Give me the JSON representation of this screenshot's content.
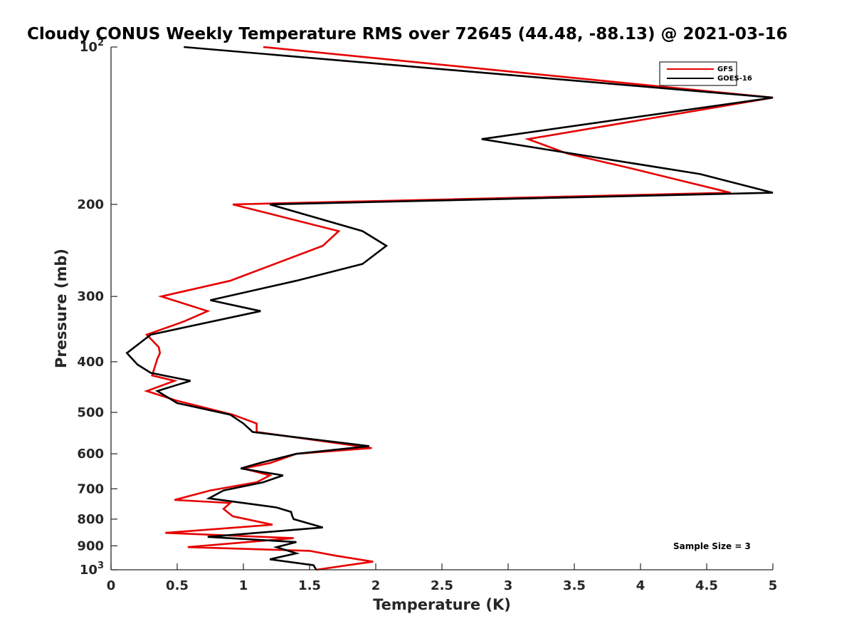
{
  "chart_data": {
    "type": "line",
    "title": "Cloudy CONUS Weekly Temperature RMS over 72645 (44.48, -88.13) @ 2021-03-16",
    "xlabel": "Temperature (K)",
    "ylabel": "Pressure (mb)",
    "xlim": [
      0,
      5
    ],
    "ylim": [
      100,
      1000
    ],
    "yscale": "log",
    "y_reversed": true,
    "x_ticks": [
      "0",
      "0.5",
      "1",
      "1.5",
      "2",
      "2.5",
      "3",
      "3.5",
      "4",
      "4.5",
      "5"
    ],
    "y_ticks": [
      {
        "value": 100,
        "base": "10",
        "exp": "2"
      },
      {
        "value": 200,
        "label": "200"
      },
      {
        "value": 300,
        "label": "300"
      },
      {
        "value": 400,
        "label": "400"
      },
      {
        "value": 500,
        "label": "500"
      },
      {
        "value": 600,
        "label": "600"
      },
      {
        "value": 700,
        "label": "700"
      },
      {
        "value": 800,
        "label": "800"
      },
      {
        "value": 900,
        "label": "900"
      },
      {
        "value": 1000,
        "base": "10",
        "exp": "3"
      }
    ],
    "grid": false,
    "legend_position": "top-right",
    "annotation": "Sample Size = 3",
    "series": [
      {
        "name": "GFS",
        "color": "#e60000",
        "points": [
          [
            1.15,
            100
          ],
          [
            5.0,
            125
          ],
          [
            3.15,
            150
          ],
          [
            3.45,
            160
          ],
          [
            3.9,
            170
          ],
          [
            4.68,
            190
          ],
          [
            0.92,
            200
          ],
          [
            1.72,
            225
          ],
          [
            1.6,
            240
          ],
          [
            0.9,
            280
          ],
          [
            0.38,
            300
          ],
          [
            0.73,
            320
          ],
          [
            0.55,
            335
          ],
          [
            0.27,
            355
          ],
          [
            0.36,
            375
          ],
          [
            0.37,
            385
          ],
          [
            0.35,
            395
          ],
          [
            0.31,
            425
          ],
          [
            0.48,
            435
          ],
          [
            0.27,
            455
          ],
          [
            0.5,
            475
          ],
          [
            0.92,
            505
          ],
          [
            1.1,
            525
          ],
          [
            1.1,
            545
          ],
          [
            1.97,
            585
          ],
          [
            1.4,
            600
          ],
          [
            1.2,
            625
          ],
          [
            1.0,
            640
          ],
          [
            1.2,
            660
          ],
          [
            1.1,
            680
          ],
          [
            0.75,
            705
          ],
          [
            0.48,
            735
          ],
          [
            0.9,
            745
          ],
          [
            0.85,
            765
          ],
          [
            0.92,
            790
          ],
          [
            1.22,
            820
          ],
          [
            0.41,
            850
          ],
          [
            1.38,
            870
          ],
          [
            0.58,
            905
          ],
          [
            1.5,
            920
          ],
          [
            1.7,
            940
          ],
          [
            1.98,
            965
          ],
          [
            1.85,
            975
          ],
          [
            1.55,
            1000
          ]
        ]
      },
      {
        "name": "GOES-16",
        "color": "#000000",
        "points": [
          [
            0.55,
            100
          ],
          [
            5.0,
            125
          ],
          [
            2.8,
            150
          ],
          [
            4.45,
            175
          ],
          [
            5.0,
            190
          ],
          [
            1.2,
            200
          ],
          [
            1.9,
            225
          ],
          [
            2.08,
            240
          ],
          [
            1.9,
            260
          ],
          [
            1.4,
            280
          ],
          [
            0.75,
            305
          ],
          [
            1.13,
            320
          ],
          [
            0.3,
            355
          ],
          [
            0.12,
            385
          ],
          [
            0.2,
            405
          ],
          [
            0.3,
            420
          ],
          [
            0.6,
            435
          ],
          [
            0.35,
            455
          ],
          [
            0.5,
            480
          ],
          [
            0.9,
            505
          ],
          [
            1.0,
            525
          ],
          [
            1.07,
            545
          ],
          [
            1.95,
            580
          ],
          [
            1.4,
            600
          ],
          [
            1.12,
            625
          ],
          [
            0.98,
            640
          ],
          [
            1.3,
            660
          ],
          [
            1.15,
            680
          ],
          [
            0.85,
            705
          ],
          [
            0.74,
            730
          ],
          [
            1.25,
            760
          ],
          [
            1.36,
            775
          ],
          [
            1.37,
            790
          ],
          [
            1.38,
            800
          ],
          [
            1.6,
            830
          ],
          [
            0.73,
            865
          ],
          [
            1.4,
            885
          ],
          [
            1.25,
            905
          ],
          [
            1.4,
            930
          ],
          [
            1.2,
            955
          ],
          [
            1.53,
            980
          ],
          [
            1.55,
            1000
          ]
        ]
      }
    ]
  }
}
